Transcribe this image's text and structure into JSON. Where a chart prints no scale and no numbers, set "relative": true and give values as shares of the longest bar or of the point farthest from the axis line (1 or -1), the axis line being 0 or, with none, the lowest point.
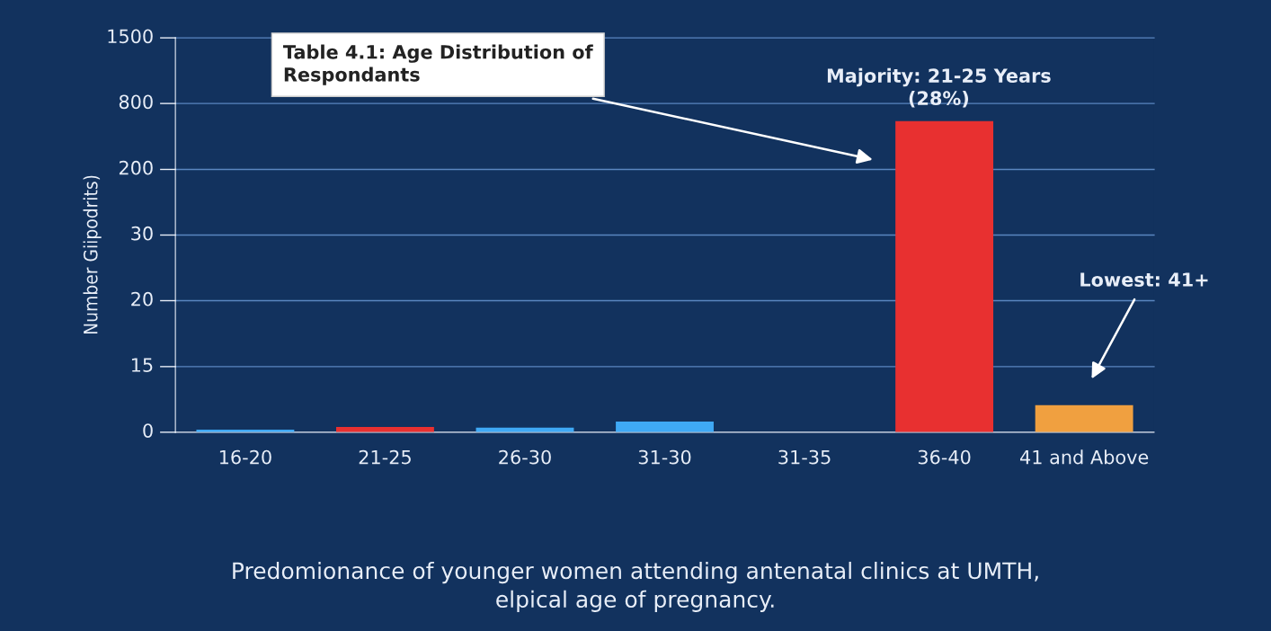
{
  "chart_data": {
    "type": "bar",
    "relative": true,
    "categories": [
      "16-20",
      "21-25",
      "26-30",
      "31-30",
      "31-35",
      "36-40",
      "41 and Above"
    ],
    "values": [
      0.008,
      0.017,
      0.015,
      0.034,
      0,
      1,
      0.087
    ],
    "colors": [
      "#3fa9f5",
      "#e83030",
      "#3fa9f5",
      "#3fa9f5",
      "#3fa9f5",
      "#e83030",
      "#f0a040"
    ],
    "ylabel": "Number Giipodrits)",
    "ref_lines": [
      {
        "axis": "y",
        "value": 0.211,
        "color": "#5a86c0"
      },
      {
        "axis": "y",
        "value": 0.423,
        "color": "#5a86c0"
      },
      {
        "axis": "y",
        "value": 0.634,
        "color": "#5a86c0"
      },
      {
        "axis": "y",
        "value": 0.845,
        "color": "#5a86c0"
      },
      {
        "axis": "y",
        "value": 1.057,
        "color": "#5a86c0"
      },
      {
        "axis": "y",
        "value": 1.268,
        "color": "#5a86c0"
      }
    ],
    "annotations": [
      "Table 4.1: Age Distribution of\nRespondants",
      "Majority: 21-25 Years\n(28%)",
      "Lowest: 41+",
      "Predomionance of younger women attending antenatal clinics at UMTH,\nelpical age of pregnancy.",
      "0",
      "15",
      "20",
      "30",
      "200",
      "800",
      "1500"
    ]
  }
}
